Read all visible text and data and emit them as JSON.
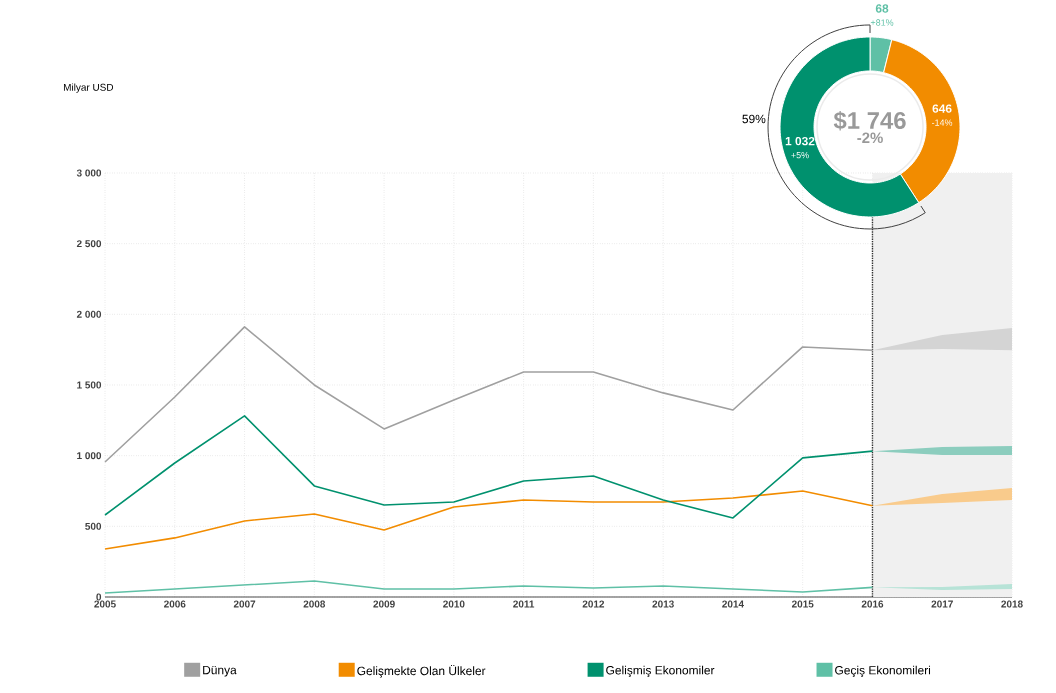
{
  "chart_data": [
    {
      "type": "line",
      "ylabel": "Milyar USD",
      "x": [
        2005,
        2006,
        2007,
        2008,
        2009,
        2010,
        2011,
        2012,
        2013,
        2014,
        2015,
        2016,
        2017,
        2018
      ],
      "xlim": [
        2005,
        2018
      ],
      "ylim": [
        0,
        3000
      ],
      "xticks": [
        2005,
        2006,
        2007,
        2008,
        2009,
        2010,
        2011,
        2012,
        2013,
        2014,
        2015,
        2016,
        2017,
        2018
      ],
      "yticks": [
        0,
        500,
        {
          "value": 1000,
          "label": "1 000"
        },
        {
          "value": 1500,
          "label": "1 500"
        },
        {
          "value": 2000,
          "label": "2 000"
        },
        {
          "value": 2500,
          "label": "2 500"
        },
        {
          "value": 3000,
          "label": "3 000"
        }
      ],
      "grid": true,
      "legend": "bottom",
      "bands": [
        {
          "axis": "x",
          "from": 2016,
          "to": 2018,
          "color": "#f0f0f0"
        }
      ],
      "ref_lines": [
        {
          "axis": "x",
          "value": 2016,
          "line_style": "dotted",
          "color": "#333333"
        }
      ],
      "series": [
        {
          "name": "Dünya",
          "color": "#a0a0a0",
          "values": [
            955,
            1415,
            1911,
            1500,
            1189,
            1394,
            1592,
            1592,
            1444,
            1323,
            1769,
            1746,
            null,
            null
          ],
          "lower": [
            null,
            null,
            null,
            null,
            null,
            null,
            null,
            null,
            null,
            null,
            null,
            1746,
            1755,
            1746
          ],
          "upper": [
            null,
            null,
            null,
            null,
            null,
            null,
            null,
            null,
            null,
            null,
            null,
            1746,
            1854,
            1904
          ]
        },
        {
          "name": "Gelişmekte Olan Ülkeler",
          "color": "#f28c00",
          "values": [
            340,
            418,
            538,
            587,
            474,
            637,
            686,
            672,
            672,
            700,
            750,
            646,
            null,
            null
          ],
          "lower": [
            null,
            null,
            null,
            null,
            null,
            null,
            null,
            null,
            null,
            null,
            null,
            646,
            665,
            686
          ],
          "upper": [
            null,
            null,
            null,
            null,
            null,
            null,
            null,
            null,
            null,
            null,
            null,
            646,
            729,
            771
          ]
        },
        {
          "name": "Gelişmiş Ekonomiler",
          "color": "#00916e",
          "values": [
            580,
            948,
            1281,
            786,
            651,
            672,
            821,
            856,
            686,
            559,
            984,
            1032,
            null,
            null
          ],
          "lower": [
            null,
            null,
            null,
            null,
            null,
            null,
            null,
            null,
            null,
            null,
            null,
            1032,
            1005,
            1005
          ],
          "upper": [
            null,
            null,
            null,
            null,
            null,
            null,
            null,
            null,
            null,
            null,
            null,
            1032,
            1062,
            1069
          ]
        },
        {
          "name": "Geçiş Ekonomileri",
          "color": "#5fc0a6",
          "values": [
            28,
            57,
            85,
            113,
            57,
            57,
            78,
            64,
            78,
            57,
            35,
            68,
            null,
            null
          ],
          "lower": [
            null,
            null,
            null,
            null,
            null,
            null,
            null,
            null,
            null,
            null,
            null,
            68,
            50,
            57
          ],
          "upper": [
            null,
            null,
            null,
            null,
            null,
            null,
            null,
            null,
            null,
            null,
            null,
            68,
            71,
            92
          ]
        }
      ]
    },
    {
      "type": "donut",
      "categories": [
        null,
        null,
        null
      ],
      "values": [
        68,
        646,
        1032
      ],
      "colors": [
        "#5fc0a6",
        "#f28c00",
        "#00916e"
      ],
      "value_labels": [
        "68",
        "646",
        "1 032"
      ],
      "annotations": [
        "$1 746",
        "-2%",
        "+81%",
        "-14%",
        "+5%",
        "59%"
      ]
    }
  ]
}
